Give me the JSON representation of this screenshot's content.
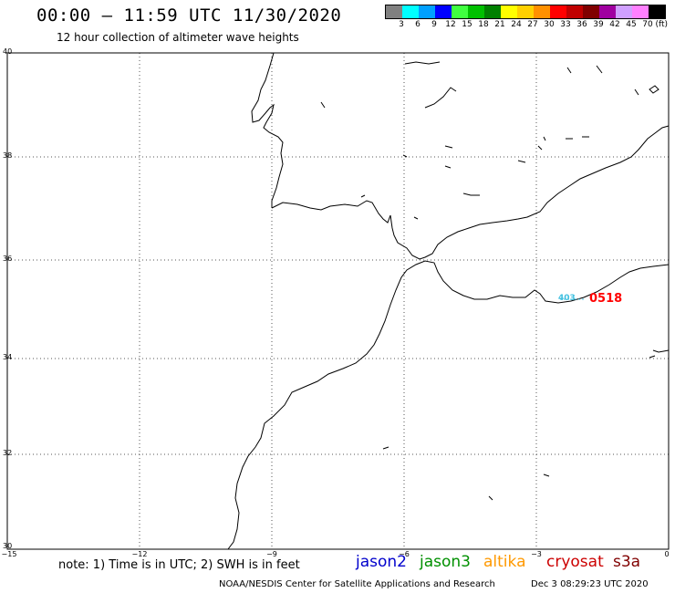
{
  "header": {
    "title": "00:00 – 11:59 UTC 11/30/2020",
    "subtitle": "12 hour collection of altimeter wave heights"
  },
  "legend": {
    "unit": "(ft)",
    "bins": [
      {
        "label": "3",
        "color": "#808080"
      },
      {
        "label": "6",
        "color": "#00ffff"
      },
      {
        "label": "9",
        "color": "#00a0ff"
      },
      {
        "label": "12",
        "color": "#0000ff"
      },
      {
        "label": "15",
        "color": "#40ff40"
      },
      {
        "label": "18",
        "color": "#00c000"
      },
      {
        "label": "21",
        "color": "#008000"
      },
      {
        "label": "24",
        "color": "#ffff00"
      },
      {
        "label": "27",
        "color": "#ffd000"
      },
      {
        "label": "30",
        "color": "#ff9000"
      },
      {
        "label": "33",
        "color": "#ff0000"
      },
      {
        "label": "36",
        "color": "#c00000"
      },
      {
        "label": "39",
        "color": "#800000"
      },
      {
        "label": "42",
        "color": "#a000a0"
      },
      {
        "label": "45",
        "color": "#d0a0ff"
      },
      {
        "label": "70",
        "color": "#ff80ff"
      },
      {
        "label": "",
        "color": "#000000"
      }
    ]
  },
  "axes": {
    "lat_labels": [
      "40",
      "38",
      "36",
      "34",
      "32",
      "30"
    ],
    "lon_labels": [
      "−15",
      "−12",
      "−9",
      "−6",
      "−3",
      "0"
    ]
  },
  "observations": [
    {
      "label": "403",
      "color": "#40c0e0"
    },
    {
      "label": "0518",
      "color": "#ff0000"
    }
  ],
  "footer": {
    "note": "note:  1) Time is in UTC;  2) SWH is in feet",
    "satellites": [
      {
        "name": "jason2",
        "color": "#0000cc"
      },
      {
        "name": "jason3",
        "color": "#009000"
      },
      {
        "name": "altika",
        "color": "#ff9900"
      },
      {
        "name": "cryosat",
        "color": "#cc0000"
      },
      {
        "name": "s3a",
        "color": "#800000"
      }
    ],
    "credit": "NOAA/NESDIS Center for Satellite Applications and Research",
    "timestamp": "Dec  3 08:29:23 UTC 2020"
  }
}
